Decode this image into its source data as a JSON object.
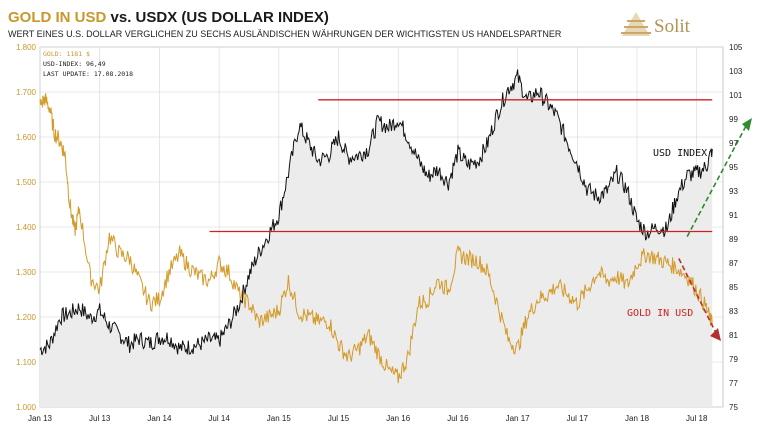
{
  "header": {
    "title_gold": "GOLD IN USD",
    "title_rest": " vs. USDX (US DOLLAR INDEX)",
    "subtitle": "WERT EINES U.S. DOLLAR VERGLICHEN ZU SECHS AUSLÄNDISCHEN WÄHRUNGEN DER WICHTIGSTEN US HANDELSPARTNER",
    "logo_text": "Solit"
  },
  "info_box": {
    "gold_line": "GOLD: 1181 $",
    "usd_line": "USD-INDEX: 96,49",
    "update_line": "LAST UPDATE: 17.08.2018"
  },
  "colors": {
    "gold": "#d49a2a",
    "usd": "#111111",
    "resistance": "#cc2222",
    "green_arrow": "#2e8b2e",
    "red_arrow": "#b53030",
    "area": "#ececec"
  },
  "chart_data": {
    "type": "line",
    "title": "GOLD IN USD vs. USDX (US DOLLAR INDEX)",
    "x_tick_labels": [
      "Jan 13",
      "Jul 13",
      "Jan 14",
      "Jul 14",
      "Jan 15",
      "Jul 15",
      "Jan 16",
      "Jul 16",
      "Jan 17",
      "Jul 17",
      "Jan 18",
      "Jul 18"
    ],
    "x_range": [
      "2013-01",
      "2018-08"
    ],
    "y_left": {
      "label": "GOLD IN USD",
      "ticks": [
        "1.000",
        "1.100",
        "1.200",
        "1.300",
        "1.400",
        "1.500",
        "1.600",
        "1.700",
        "1.800"
      ],
      "range": [
        1000,
        1800
      ]
    },
    "y_right": {
      "label": "USD INDEX",
      "ticks": [
        "75",
        "77",
        "79",
        "81",
        "83",
        "85",
        "87",
        "89",
        "91",
        "93",
        "95",
        "97",
        "99",
        "101",
        "103",
        "105"
      ],
      "range": [
        75,
        105
      ]
    },
    "grid": true,
    "series": [
      {
        "name": "USD INDEX",
        "axis": "right",
        "x": [
          2013.0,
          2013.08,
          2013.17,
          2013.25,
          2013.33,
          2013.42,
          2013.5,
          2013.58,
          2013.67,
          2013.75,
          2013.83,
          2013.92,
          2014.0,
          2014.08,
          2014.17,
          2014.25,
          2014.33,
          2014.42,
          2014.5,
          2014.58,
          2014.67,
          2014.75,
          2014.83,
          2014.92,
          2015.0,
          2015.08,
          2015.17,
          2015.25,
          2015.33,
          2015.42,
          2015.5,
          2015.58,
          2015.67,
          2015.75,
          2015.83,
          2015.92,
          2016.0,
          2016.08,
          2016.17,
          2016.25,
          2016.33,
          2016.42,
          2016.5,
          2016.58,
          2016.67,
          2016.75,
          2016.83,
          2016.92,
          2017.0,
          2017.08,
          2017.17,
          2017.25,
          2017.33,
          2017.42,
          2017.5,
          2017.58,
          2017.67,
          2017.75,
          2017.83,
          2017.92,
          2018.0,
          2018.08,
          2018.17,
          2018.25,
          2018.33,
          2018.42,
          2018.5,
          2018.58,
          2018.63
        ],
        "y": [
          79.8,
          80.2,
          82.5,
          82.8,
          83.3,
          82.4,
          83.0,
          81.8,
          81.0,
          80.2,
          80.7,
          80.3,
          80.8,
          80.8,
          79.9,
          80.0,
          80.2,
          80.6,
          80.5,
          81.8,
          83.6,
          86.0,
          87.8,
          89.5,
          91.0,
          94.5,
          98.5,
          97.0,
          95.5,
          96.0,
          97.5,
          95.8,
          96.0,
          96.5,
          98.8,
          98.3,
          99.0,
          97.5,
          95.5,
          94.2,
          94.8,
          93.7,
          96.2,
          95.2,
          95.5,
          97.0,
          99.5,
          101.5,
          102.5,
          100.5,
          101.3,
          100.3,
          99.2,
          97.0,
          95.3,
          93.2,
          92.5,
          93.0,
          94.5,
          93.0,
          90.5,
          89.5,
          90.0,
          89.8,
          92.5,
          94.3,
          94.5,
          95.0,
          96.5
        ]
      },
      {
        "name": "GOLD IN USD",
        "axis": "left",
        "x": [
          2013.0,
          2013.04,
          2013.08,
          2013.12,
          2013.17,
          2013.21,
          2013.25,
          2013.29,
          2013.33,
          2013.42,
          2013.5,
          2013.58,
          2013.67,
          2013.75,
          2013.83,
          2013.92,
          2014.0,
          2014.08,
          2014.17,
          2014.25,
          2014.33,
          2014.42,
          2014.5,
          2014.58,
          2014.67,
          2014.75,
          2014.83,
          2014.92,
          2015.0,
          2015.08,
          2015.17,
          2015.25,
          2015.33,
          2015.42,
          2015.5,
          2015.58,
          2015.67,
          2015.75,
          2015.83,
          2015.92,
          2016.0,
          2016.08,
          2016.17,
          2016.25,
          2016.33,
          2016.42,
          2016.5,
          2016.58,
          2016.67,
          2016.75,
          2016.83,
          2016.92,
          2017.0,
          2017.08,
          2017.17,
          2017.25,
          2017.33,
          2017.42,
          2017.5,
          2017.58,
          2017.67,
          2017.75,
          2017.83,
          2017.92,
          2018.0,
          2018.08,
          2018.17,
          2018.25,
          2018.33,
          2018.42,
          2018.5,
          2018.58,
          2018.63
        ],
        "y": [
          1670,
          1685,
          1665,
          1610,
          1590,
          1560,
          1450,
          1390,
          1440,
          1290,
          1260,
          1380,
          1340,
          1330,
          1280,
          1230,
          1240,
          1300,
          1340,
          1310,
          1290,
          1280,
          1320,
          1300,
          1250,
          1230,
          1190,
          1200,
          1215,
          1280,
          1210,
          1200,
          1190,
          1190,
          1140,
          1110,
          1130,
          1160,
          1120,
          1080,
          1065,
          1110,
          1230,
          1240,
          1280,
          1260,
          1340,
          1330,
          1325,
          1300,
          1230,
          1150,
          1130,
          1200,
          1240,
          1250,
          1270,
          1250,
          1230,
          1260,
          1300,
          1280,
          1290,
          1270,
          1320,
          1340,
          1330,
          1320,
          1310,
          1290,
          1260,
          1220,
          1181
        ]
      }
    ],
    "resistance_lines": [
      {
        "axis": "right",
        "value": 100.6,
        "x_from": 2015.33,
        "x_to": 2018.63
      },
      {
        "axis": "left",
        "value": 1390,
        "x_from": 2014.42,
        "x_to": 2018.63
      }
    ],
    "annotations": [
      {
        "text": "USD INDEX"
      },
      {
        "text": "GOLD IN USD"
      }
    ]
  }
}
